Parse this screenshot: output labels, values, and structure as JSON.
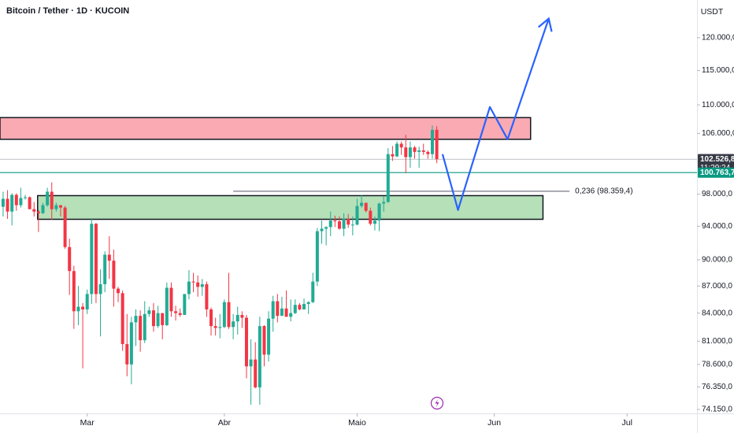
{
  "chart_data": {
    "type": "candlestick",
    "title": "Bitcoin / Tether · 1D · KUCOIN",
    "currency": "USDT",
    "log_scale": true,
    "up_color": "#22ab94",
    "down_color": "#f23645",
    "ylim": [
      73770,
      126000
    ],
    "yticks": [
      {
        "value": 120000,
        "label": "120.000,0"
      },
      {
        "value": 115000,
        "label": "115.000,0"
      },
      {
        "value": 110000,
        "label": "110.000,0"
      },
      {
        "value": 106000,
        "label": "106.000,0"
      },
      {
        "value": 98000,
        "label": "98.000,0"
      },
      {
        "value": 94000,
        "label": "94.000,0"
      },
      {
        "value": 90000,
        "label": "90.000,0"
      },
      {
        "value": 87000,
        "label": "87.000,0"
      },
      {
        "value": 84000,
        "label": "84.000,0"
      },
      {
        "value": 81000,
        "label": "81.000,0"
      },
      {
        "value": 78600,
        "label": "78.600,0"
      },
      {
        "value": 76350,
        "label": "76.350,0"
      },
      {
        "value": 74150,
        "label": "74.150,0"
      }
    ],
    "xlim": [
      -0.7,
      156.8
    ],
    "xticks": [
      {
        "value": 19,
        "label": "Mar"
      },
      {
        "value": 50,
        "label": "Abr"
      },
      {
        "value": 80,
        "label": "Maio"
      },
      {
        "value": 111,
        "label": "Jun"
      },
      {
        "value": 141,
        "label": "Jul"
      }
    ],
    "open": [
      96400,
      97400,
      95800,
      97900,
      96600,
      97500,
      97600,
      96100,
      95800,
      95600,
      96600,
      98300,
      96100,
      96600,
      96300,
      91500,
      88700,
      84200,
      84700,
      84400,
      86100,
      94300,
      86100,
      87200,
      90600,
      89900,
      86700,
      86200,
      80700,
      78600,
      83000,
      83700,
      81100,
      83900,
      84300,
      82600,
      84000,
      82700,
      86800,
      84200,
      84000,
      83800,
      86100,
      87500,
      87400,
      86900,
      87200,
      84400,
      82600,
      82400,
      82500,
      85200,
      82500,
      83100,
      83800,
      83500,
      78400,
      79100,
      76300,
      82600,
      79600,
      83400,
      85300,
      83700,
      84500,
      83600,
      84000,
      84900,
      84400,
      85000,
      85200,
      87500,
      93400,
      93700,
      93900,
      94700,
      94600,
      93700,
      94900,
      94200,
      94200,
      96500,
      96900,
      95900,
      94300,
      94700,
      96800,
      97000,
      103200,
      102900,
      104600,
      104100,
      102800,
      104100,
      103500,
      103700,
      103500,
      103200,
      106500
    ],
    "high": [
      98300,
      98500,
      98100,
      98100,
      98800,
      97900,
      97700,
      97000,
      96000,
      96900,
      98800,
      99500,
      96900,
      96600,
      96500,
      92500,
      89300,
      87000,
      85100,
      86600,
      95000,
      94400,
      88900,
      91000,
      92800,
      91200,
      86900,
      86500,
      83900,
      83600,
      84400,
      84300,
      85300,
      84700,
      85100,
      84800,
      84000,
      87400,
      87400,
      84800,
      84500,
      86100,
      88800,
      88500,
      88200,
      87800,
      87500,
      84600,
      83500,
      83900,
      85500,
      88500,
      83900,
      84700,
      84200,
      83800,
      81200,
      80900,
      83600,
      82700,
      84200,
      85900,
      86100,
      85800,
      86500,
      85500,
      85500,
      85100,
      85600,
      85300,
      88500,
      93800,
      94700,
      94000,
      95800,
      95300,
      95200,
      95600,
      95500,
      95200,
      97400,
      97900,
      96900,
      96300,
      95200,
      96900,
      97700,
      104000,
      104300,
      104900,
      104900,
      105800,
      104900,
      104300,
      104200,
      104600,
      103700,
      107100,
      107000
    ],
    "low": [
      95200,
      94900,
      94100,
      95900,
      96300,
      97300,
      96100,
      95200,
      93300,
      95500,
      96400,
      94800,
      95800,
      95200,
      91300,
      86000,
      82300,
      82700,
      78200,
      83900,
      85000,
      85100,
      81500,
      86300,
      87800,
      84700,
      85200,
      80000,
      77400,
      76600,
      80500,
      79900,
      80800,
      83600,
      82000,
      82400,
      81200,
      82600,
      83600,
      83200,
      83600,
      83800,
      85500,
      86300,
      85800,
      85900,
      83600,
      81600,
      81600,
      81300,
      82400,
      82300,
      81200,
      81700,
      82400,
      77200,
      74600,
      76200,
      74600,
      78400,
      78900,
      82000,
      83000,
      83700,
      83600,
      83100,
      83900,
      84300,
      84400,
      83900,
      85100,
      87000,
      91900,
      91700,
      92800,
      93900,
      93600,
      92800,
      93800,
      92900,
      94100,
      96300,
      95700,
      94100,
      93500,
      93400,
      95800,
      96900,
      102300,
      102800,
      103100,
      100700,
      101400,
      102600,
      101400,
      103100,
      102600,
      102600,
      102000
    ],
    "close": [
      97400,
      95800,
      97900,
      96600,
      97500,
      97600,
      96100,
      95800,
      95600,
      96600,
      98300,
      96100,
      96600,
      96300,
      91500,
      88700,
      84200,
      84700,
      84400,
      86100,
      94300,
      86100,
      87200,
      90600,
      89900,
      86700,
      86200,
      80700,
      78600,
      83000,
      83700,
      81100,
      83900,
      84300,
      82600,
      84000,
      82700,
      86800,
      84200,
      84000,
      83800,
      86100,
      87500,
      87400,
      86900,
      87200,
      84400,
      82600,
      82400,
      82500,
      85200,
      82500,
      83100,
      83800,
      83500,
      78400,
      79100,
      76300,
      82600,
      79600,
      83400,
      85300,
      83700,
      84500,
      83600,
      84000,
      84900,
      84400,
      85000,
      85200,
      87500,
      93400,
      93700,
      93900,
      94700,
      94600,
      93700,
      94900,
      94200,
      94200,
      96500,
      96900,
      95900,
      94300,
      94700,
      96800,
      97000,
      103200,
      102900,
      104600,
      104100,
      102800,
      104100,
      103500,
      103700,
      103500,
      103200,
      106500,
      102526.8
    ],
    "price_lines": [
      {
        "value": 102526.8,
        "label": "102.526,8",
        "countdown": "11:29:24",
        "color": "#363a45"
      },
      {
        "value": 100763.7,
        "label": "100.763,7",
        "color": "#089981"
      }
    ],
    "zones": [
      {
        "x": [
          -0.7,
          119.2
        ],
        "y": [
          105200,
          108200
        ],
        "color": "#f9aab3"
      },
      {
        "x": [
          7.8,
          122
        ],
        "y": [
          94850,
          97800
        ],
        "color": "#b5e0b8"
      }
    ],
    "fib": {
      "value": 98359.4,
      "label": "0,236 (98.359,4)",
      "x": [
        52,
        128
      ]
    },
    "projection": {
      "color": "#2962ff",
      "x": [
        99.3,
        102.8,
        110,
        114,
        123.3
      ],
      "y": [
        103200,
        96000,
        109700,
        105200,
        123000
      ]
    }
  }
}
